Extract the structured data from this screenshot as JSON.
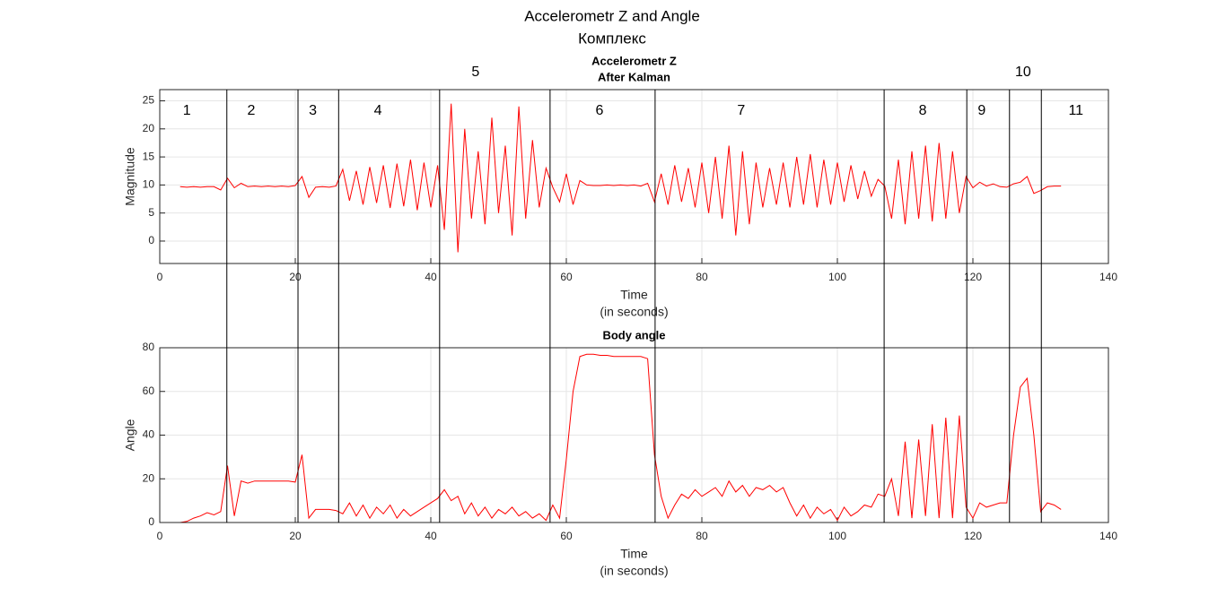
{
  "figure": {
    "title": "Accelerometr Z and Angle",
    "subtitle": "Комплекс"
  },
  "chart_data": [
    {
      "type": "line",
      "title": "Accelerometr Z",
      "subtitle": "After Kalman",
      "xlabel": [
        "Time",
        "(in seconds)"
      ],
      "ylabel": "Magnitude",
      "color": "#ff0000",
      "grid": true,
      "xlim": [
        0,
        140
      ],
      "xticks": [
        0,
        20,
        40,
        60,
        80,
        100,
        120,
        140
      ],
      "ylim": [
        -4,
        27
      ],
      "yticks": [
        0,
        5,
        10,
        15,
        20,
        25
      ],
      "vlines": [
        9.9,
        20.4,
        26.4,
        41.3,
        57.6,
        73.1,
        106.9,
        119.1,
        125.4,
        130.1
      ],
      "annotations": [
        {
          "text": "1",
          "x": 4,
          "y": 23.2
        },
        {
          "text": "2",
          "x": 13.5,
          "y": 23.2
        },
        {
          "text": "3",
          "x": 22.6,
          "y": 23.2
        },
        {
          "text": "4",
          "x": 32.2,
          "y": 23.2
        },
        {
          "text": "5",
          "x": 46.6,
          "y": 30.1
        },
        {
          "text": "6",
          "x": 64.9,
          "y": 23.2
        },
        {
          "text": "7",
          "x": 85.8,
          "y": 23.2
        },
        {
          "text": "8",
          "x": 112.6,
          "y": 23.2
        },
        {
          "text": "9",
          "x": 121.3,
          "y": 23.2
        },
        {
          "text": "10",
          "x": 127.4,
          "y": 30.1
        },
        {
          "text": "11",
          "x": 135.2,
          "y": 23.2
        }
      ],
      "x": [
        3,
        4,
        5,
        6,
        7,
        8,
        9,
        10,
        11,
        12,
        13,
        14,
        15,
        16,
        17,
        18,
        19,
        20,
        21,
        22,
        23,
        24,
        25,
        26,
        27,
        28,
        29,
        30,
        31,
        32,
        33,
        34,
        35,
        36,
        37,
        38,
        39,
        40,
        41,
        42,
        43,
        44,
        45,
        46,
        47,
        48,
        49,
        50,
        51,
        52,
        53,
        54,
        55,
        56,
        57,
        58,
        59,
        60,
        61,
        62,
        63,
        64,
        65,
        66,
        67,
        68,
        69,
        70,
        71,
        72,
        73,
        74,
        75,
        76,
        77,
        78,
        79,
        80,
        81,
        82,
        83,
        84,
        85,
        86,
        87,
        88,
        89,
        90,
        91,
        92,
        93,
        94,
        95,
        96,
        97,
        98,
        99,
        100,
        101,
        102,
        103,
        104,
        105,
        106,
        107,
        108,
        109,
        110,
        111,
        112,
        113,
        114,
        115,
        116,
        117,
        118,
        119,
        120,
        121,
        122,
        123,
        124,
        125,
        126,
        127,
        128,
        129,
        130,
        131,
        132,
        133
      ],
      "values": [
        9.7,
        9.6,
        9.7,
        9.6,
        9.7,
        9.7,
        9.1,
        11.2,
        9.5,
        10.3,
        9.7,
        9.8,
        9.7,
        9.8,
        9.7,
        9.8,
        9.7,
        9.9,
        11.5,
        7.8,
        9.6,
        9.7,
        9.6,
        9.8,
        12.8,
        7.2,
        12.5,
        6.5,
        13.2,
        6.8,
        13.5,
        5.9,
        13.8,
        6.2,
        14.5,
        5.5,
        14,
        6,
        13.5,
        2,
        24.5,
        -2,
        20,
        4,
        16,
        3,
        22,
        5,
        17,
        1,
        24,
        4,
        18,
        6,
        13,
        9.6,
        7,
        12,
        6.5,
        10.8,
        10,
        9.9,
        9.9,
        10,
        9.9,
        10,
        9.9,
        10,
        9.8,
        10.3,
        7,
        12,
        6.5,
        13.5,
        7,
        13,
        6,
        14,
        5,
        15,
        4,
        17,
        1,
        16,
        3,
        14,
        6,
        13,
        6.5,
        14,
        6,
        15,
        6.5,
        15.5,
        6,
        14.5,
        6.5,
        14,
        7,
        13.5,
        7.5,
        12.5,
        8,
        11,
        9.8,
        4,
        14.5,
        3,
        16,
        4,
        17,
        3.5,
        17.5,
        4,
        16,
        5,
        11.5,
        9.5,
        10.5,
        9.8,
        10.2,
        9.7,
        9.6,
        10.2,
        10.5,
        11.5,
        8.5,
        9,
        9.7,
        9.8,
        9.8
      ]
    },
    {
      "type": "line",
      "title": "Body angle",
      "xlabel": [
        "Time",
        "(in seconds)"
      ],
      "ylabel": "Angle",
      "color": "#ff0000",
      "grid": true,
      "xlim": [
        0,
        140
      ],
      "xticks": [
        0,
        20,
        40,
        60,
        80,
        100,
        120,
        140
      ],
      "ylim": [
        0,
        80
      ],
      "yticks": [
        0,
        20,
        40,
        60,
        80
      ],
      "x": [
        3,
        4,
        5,
        6,
        7,
        8,
        9,
        10,
        11,
        12,
        13,
        14,
        15,
        16,
        17,
        18,
        19,
        20,
        21,
        22,
        23,
        24,
        25,
        26,
        27,
        28,
        29,
        30,
        31,
        32,
        33,
        34,
        35,
        36,
        37,
        38,
        39,
        40,
        41,
        42,
        43,
        44,
        45,
        46,
        47,
        48,
        49,
        50,
        51,
        52,
        53,
        54,
        55,
        56,
        57,
        58,
        59,
        60,
        61,
        62,
        63,
        64,
        65,
        66,
        67,
        68,
        69,
        70,
        71,
        72,
        73,
        74,
        75,
        76,
        77,
        78,
        79,
        80,
        81,
        82,
        83,
        84,
        85,
        86,
        87,
        88,
        89,
        90,
        91,
        92,
        93,
        94,
        95,
        96,
        97,
        98,
        99,
        100,
        101,
        102,
        103,
        104,
        105,
        106,
        107,
        108,
        109,
        110,
        111,
        112,
        113,
        114,
        115,
        116,
        117,
        118,
        119,
        120,
        121,
        122,
        123,
        124,
        125,
        126,
        127,
        128,
        129,
        130,
        131,
        132,
        133
      ],
      "values": [
        0,
        0.5,
        2,
        3,
        4.5,
        3.5,
        5,
        26,
        3,
        19,
        18,
        19,
        19,
        19,
        19,
        19,
        19,
        18.5,
        31,
        2,
        6,
        6,
        6,
        5.5,
        4,
        9,
        3,
        8,
        2,
        7,
        4,
        8,
        2,
        6,
        3,
        5,
        7,
        9,
        11,
        15,
        10,
        12,
        4,
        9,
        3,
        7,
        2,
        6,
        4,
        7,
        3,
        5,
        2,
        4,
        1,
        8,
        2,
        29,
        60,
        76,
        77,
        77,
        76.5,
        76.5,
        76,
        76,
        76,
        76,
        76,
        75,
        31,
        12,
        2,
        8,
        13,
        11,
        15,
        12,
        14,
        16,
        12,
        19,
        14,
        17,
        12,
        16,
        15,
        17,
        14,
        16,
        9,
        3,
        8,
        2,
        7,
        4,
        6,
        1,
        7,
        3,
        5,
        8,
        7,
        13,
        12,
        20,
        3,
        37,
        2,
        38,
        3,
        45,
        2,
        48,
        2,
        49,
        7,
        2,
        9,
        7,
        8,
        9,
        9,
        40,
        62,
        66,
        40,
        5,
        9,
        8,
        6
      ]
    }
  ]
}
